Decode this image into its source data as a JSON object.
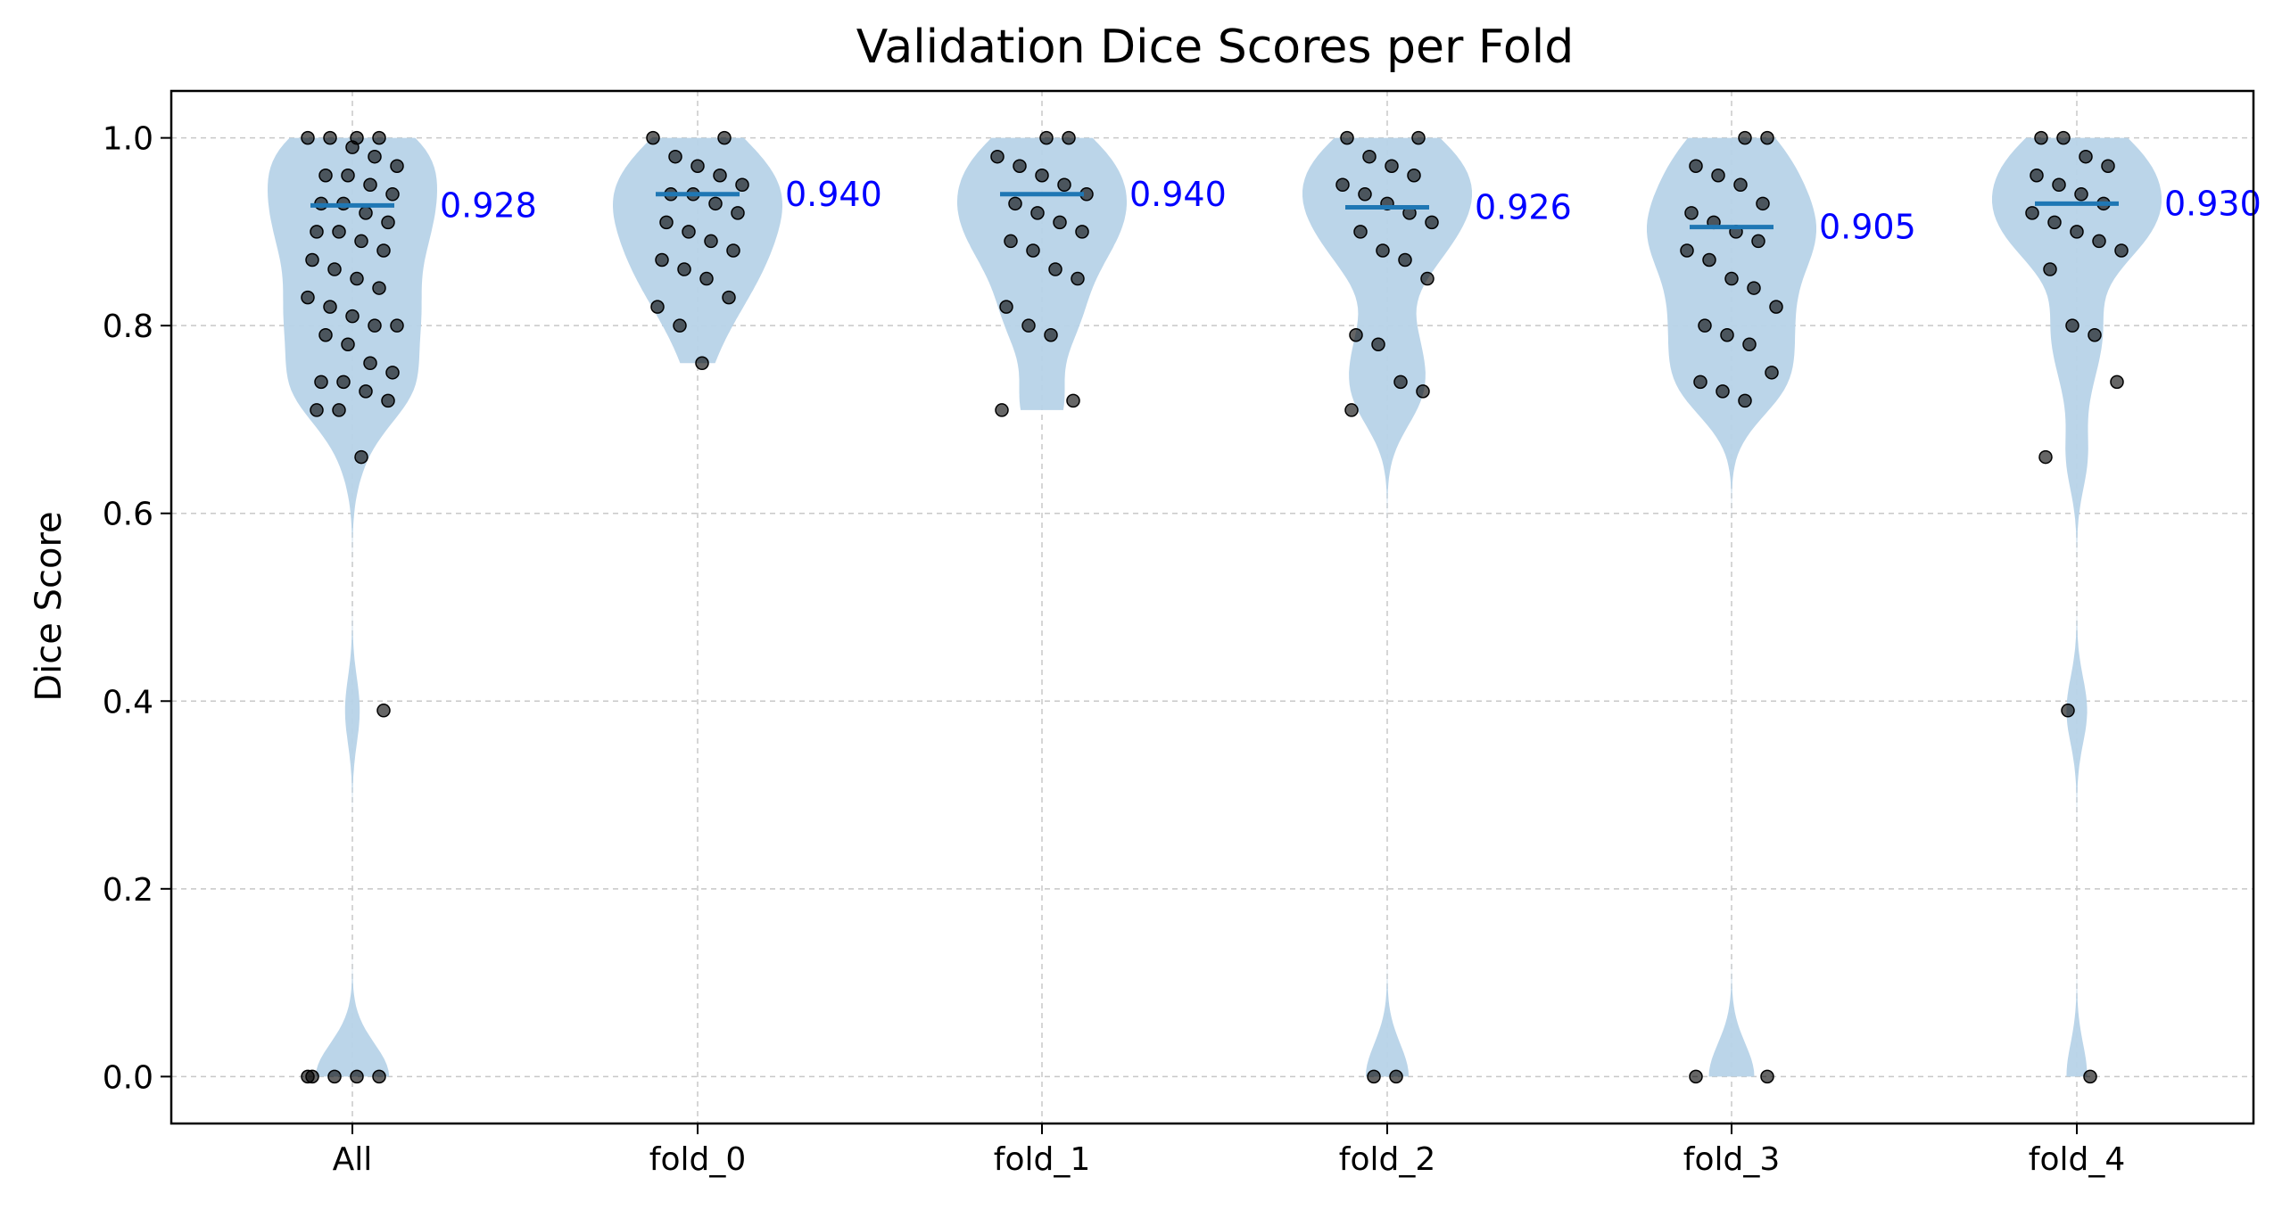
{
  "chart_data": {
    "type": "violin",
    "title": "Validation Dice Scores per Fold",
    "xlabel": "",
    "ylabel": "Dice Score",
    "categories": [
      "All",
      "fold_0",
      "fold_1",
      "fold_2",
      "fold_3",
      "fold_4"
    ],
    "ylim": [
      -0.05,
      1.05
    ],
    "yticks": [
      0.0,
      0.2,
      0.4,
      0.6,
      0.8,
      1.0
    ],
    "ytick_labels": [
      "0.0",
      "0.2",
      "0.4",
      "0.6",
      "0.8",
      "1.0"
    ],
    "grid": true,
    "colors": {
      "violin_fill": "#b7d3e8",
      "median_line": "#1f77b4",
      "points": "#000000",
      "annotation": "#0000ff",
      "grid": "#c8c8c8"
    },
    "series": [
      {
        "category": "All",
        "median": 0.928,
        "label": "0.928",
        "points": [
          0.0,
          0.0,
          0.0,
          0.0,
          0.0,
          0.39,
          0.66,
          0.71,
          0.71,
          0.72,
          0.73,
          0.74,
          0.74,
          0.75,
          0.76,
          0.78,
          0.79,
          0.8,
          0.8,
          0.81,
          0.82,
          0.83,
          0.84,
          0.85,
          0.86,
          0.87,
          0.88,
          0.89,
          0.9,
          0.9,
          0.91,
          0.92,
          0.93,
          0.93,
          0.94,
          0.95,
          0.96,
          0.96,
          0.97,
          0.98,
          0.99,
          1.0,
          1.0,
          1.0,
          1.0
        ]
      },
      {
        "category": "fold_0",
        "median": 0.94,
        "label": "0.940",
        "points": [
          0.76,
          0.8,
          0.82,
          0.83,
          0.85,
          0.86,
          0.87,
          0.88,
          0.89,
          0.9,
          0.91,
          0.92,
          0.93,
          0.94,
          0.94,
          0.95,
          0.96,
          0.97,
          0.98,
          1.0,
          1.0
        ]
      },
      {
        "category": "fold_1",
        "median": 0.94,
        "label": "0.940",
        "points": [
          0.71,
          0.72,
          0.79,
          0.8,
          0.82,
          0.85,
          0.86,
          0.88,
          0.89,
          0.9,
          0.91,
          0.92,
          0.93,
          0.94,
          0.95,
          0.96,
          0.97,
          0.98,
          1.0,
          1.0
        ]
      },
      {
        "category": "fold_2",
        "median": 0.926,
        "label": "0.926",
        "points": [
          0.0,
          0.0,
          0.71,
          0.73,
          0.74,
          0.78,
          0.79,
          0.85,
          0.87,
          0.88,
          0.9,
          0.91,
          0.92,
          0.93,
          0.94,
          0.95,
          0.96,
          0.97,
          0.98,
          1.0,
          1.0
        ]
      },
      {
        "category": "fold_3",
        "median": 0.905,
        "label": "0.905",
        "points": [
          0.0,
          0.0,
          0.72,
          0.73,
          0.74,
          0.75,
          0.78,
          0.79,
          0.8,
          0.82,
          0.84,
          0.85,
          0.87,
          0.88,
          0.89,
          0.9,
          0.91,
          0.92,
          0.93,
          0.95,
          0.96,
          0.97,
          1.0,
          1.0
        ]
      },
      {
        "category": "fold_4",
        "median": 0.93,
        "label": "0.930",
        "points": [
          0.0,
          0.39,
          0.66,
          0.74,
          0.79,
          0.8,
          0.86,
          0.88,
          0.89,
          0.9,
          0.91,
          0.92,
          0.93,
          0.94,
          0.95,
          0.96,
          0.97,
          0.98,
          1.0,
          1.0
        ]
      }
    ]
  }
}
